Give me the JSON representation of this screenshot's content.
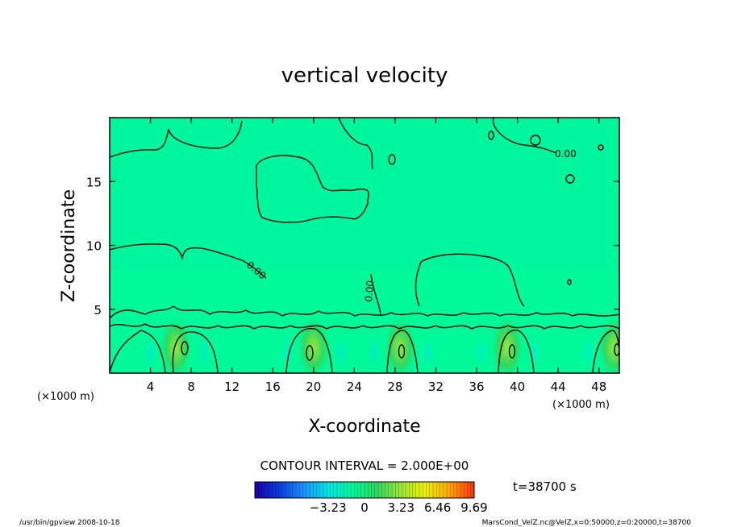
{
  "chart_data": {
    "type": "heatmap",
    "title": "vertical velocity",
    "xlabel": "X-coordinate",
    "ylabel": "Z-coordinate",
    "x_unit": "(×1000 m)",
    "y_unit": "(×1000 m)",
    "xlim": [
      0,
      50
    ],
    "ylim": [
      0,
      20
    ],
    "x_ticks": [
      4,
      8,
      12,
      16,
      20,
      24,
      28,
      32,
      36,
      40,
      44,
      48
    ],
    "y_ticks": [
      5,
      10,
      15
    ],
    "grid": false,
    "contour_interval_text": "CONTOUR INTERVAL = 2.000E+00",
    "contour_labels": [
      "0.00",
      "0.00",
      "0.00"
    ],
    "colorbar": {
      "min": -9.69,
      "max": 9.69,
      "ticks": [
        -3.23,
        0,
        3.23,
        6.46,
        9.69
      ],
      "tick_labels": [
        "−3.23",
        "0",
        "3.23",
        "6.46",
        "9.69"
      ],
      "colors": [
        "#1a00a8",
        "#0b3ce0",
        "#1e90ff",
        "#00e5e5",
        "#00fa9a",
        "#2ed860",
        "#9ae63a",
        "#f0f000",
        "#ffa500",
        "#ff3010"
      ]
    },
    "updraft_x": [
      6.5,
      20,
      28.5,
      39,
      49.5
    ],
    "updraft_peak_z": [
      2,
      2,
      2,
      2,
      2
    ]
  },
  "time_label": "t=38700 s",
  "footer": {
    "left": "/usr/bin/gpview   2008-10-18",
    "right": "MarsCond_VelZ.nc@VelZ,x=0:50000,z=0:20000,t=38700"
  }
}
